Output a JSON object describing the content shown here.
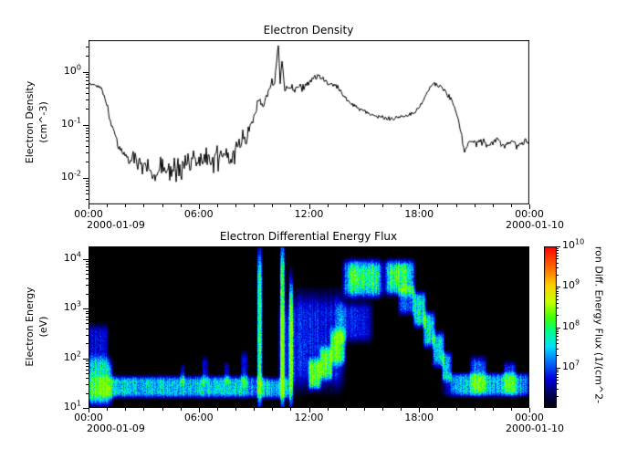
{
  "figure": {
    "background": "#ffffff"
  },
  "chart_data": [
    {
      "type": "line",
      "title": "Electron Density",
      "ylabel_lines": [
        "Electron Density",
        "(cm^-3)"
      ],
      "xlabel": "",
      "x_range_hours": [
        0,
        24
      ],
      "x_tick_hours": [
        0,
        6,
        12,
        18,
        24
      ],
      "x_tick_labels": [
        "00:00",
        "06:00",
        "12:00",
        "18:00",
        "00:00"
      ],
      "date_left": "2000-01-09",
      "date_right": "2000-01-10",
      "ylog_range": [
        -2.5,
        0.6
      ],
      "y_tick_exponents": [
        0,
        -1,
        -2
      ],
      "line_color": "#000000",
      "seed": 20000109,
      "anchors_time_value": [
        [
          0,
          0.6
        ],
        [
          0.4,
          0.55
        ],
        [
          0.7,
          0.5
        ],
        [
          0.9,
          0.3
        ],
        [
          1.2,
          0.12
        ],
        [
          1.5,
          0.05
        ],
        [
          1.9,
          0.028
        ],
        [
          2.4,
          0.02
        ],
        [
          3,
          0.016
        ],
        [
          3.6,
          0.013
        ],
        [
          4.2,
          0.018
        ],
        [
          4.8,
          0.014
        ],
        [
          5.4,
          0.02
        ],
        [
          6,
          0.022
        ],
        [
          6.6,
          0.02
        ],
        [
          7.2,
          0.026
        ],
        [
          7.8,
          0.03
        ],
        [
          8.4,
          0.05
        ],
        [
          8.8,
          0.09
        ],
        [
          9.1,
          0.18
        ],
        [
          9.35,
          0.32
        ],
        [
          9.5,
          0.2
        ],
        [
          9.7,
          0.35
        ],
        [
          9.9,
          0.45
        ],
        [
          10.1,
          0.7
        ],
        [
          10.25,
          1.5
        ],
        [
          10.35,
          3.2
        ],
        [
          10.45,
          0.6
        ],
        [
          10.55,
          2.2
        ],
        [
          10.62,
          0.9
        ],
        [
          10.7,
          0.5
        ],
        [
          10.9,
          0.55
        ],
        [
          11.2,
          0.45
        ],
        [
          11.6,
          0.5
        ],
        [
          12,
          0.6
        ],
        [
          12.3,
          0.8
        ],
        [
          12.55,
          0.9
        ],
        [
          12.8,
          0.7
        ],
        [
          13.1,
          0.6
        ],
        [
          13.5,
          0.55
        ],
        [
          13.9,
          0.35
        ],
        [
          14.3,
          0.25
        ],
        [
          14.8,
          0.2
        ],
        [
          15.3,
          0.16
        ],
        [
          15.8,
          0.14
        ],
        [
          16.3,
          0.13
        ],
        [
          16.8,
          0.14
        ],
        [
          17.3,
          0.15
        ],
        [
          17.8,
          0.18
        ],
        [
          18.2,
          0.28
        ],
        [
          18.5,
          0.45
        ],
        [
          18.8,
          0.62
        ],
        [
          19,
          0.55
        ],
        [
          19.3,
          0.5
        ],
        [
          19.6,
          0.35
        ],
        [
          19.9,
          0.25
        ],
        [
          20.2,
          0.1
        ],
        [
          20.45,
          0.03
        ],
        [
          20.7,
          0.05
        ],
        [
          21,
          0.042
        ],
        [
          21.4,
          0.05
        ],
        [
          21.8,
          0.04
        ],
        [
          22.2,
          0.05
        ],
        [
          22.6,
          0.042
        ],
        [
          23,
          0.048
        ],
        [
          23.4,
          0.04
        ],
        [
          23.8,
          0.05
        ],
        [
          24,
          0.045
        ]
      ],
      "noise_log10_segments": [
        [
          0,
          1,
          0.03
        ],
        [
          1,
          2,
          0.12
        ],
        [
          2,
          8.6,
          0.3
        ],
        [
          8.6,
          9.9,
          0.12
        ],
        [
          9.9,
          10.8,
          0.15
        ],
        [
          10.8,
          13.6,
          0.09
        ],
        [
          13.6,
          17.9,
          0.05
        ],
        [
          17.9,
          19.5,
          0.05
        ],
        [
          19.5,
          20.3,
          0.06
        ],
        [
          20.3,
          24,
          0.09
        ]
      ]
    },
    {
      "type": "heatmap",
      "title": "Electron Differential Energy Flux",
      "ylabel_lines": [
        "Electron Energy",
        "(eV)"
      ],
      "x_range_hours": [
        0,
        24
      ],
      "x_tick_hours": [
        0,
        6,
        12,
        18,
        24
      ],
      "x_tick_labels": [
        "00:00",
        "06:00",
        "12:00",
        "18:00",
        "00:00"
      ],
      "date_left": "2000-01-09",
      "date_right": "2000-01-10",
      "ylog_range": [
        1,
        4.25
      ],
      "y_tick_exponents": [
        4,
        3,
        2,
        1
      ],
      "background": "#000000",
      "seed": 99173,
      "colormap_stops": [
        [
          0,
          "#000008"
        ],
        [
          0.08,
          "#000050"
        ],
        [
          0.18,
          "#0000e0"
        ],
        [
          0.3,
          "#0080ff"
        ],
        [
          0.38,
          "#00e0ff"
        ],
        [
          0.48,
          "#00ff80"
        ],
        [
          0.56,
          "#40ff00"
        ],
        [
          0.66,
          "#c8ff00"
        ],
        [
          0.76,
          "#ffd000"
        ],
        [
          0.86,
          "#ff7000"
        ],
        [
          1,
          "#ff0000"
        ]
      ],
      "features": [
        {
          "t": [
            0,
            1.25
          ],
          "logE": [
            1.08,
            1.95
          ],
          "v": 0.42
        },
        {
          "t": [
            0,
            1.05
          ],
          "logE": [
            1.9,
            2.65
          ],
          "v": 0.18
        },
        {
          "t": [
            0.4,
            9.45
          ],
          "logE": [
            1.22,
            1.62
          ],
          "v": 0.36
        },
        {
          "t": [
            5,
            5.25
          ],
          "logE": [
            1.5,
            1.85
          ],
          "v": 0.15
        },
        {
          "t": [
            6.2,
            6.5
          ],
          "logE": [
            1.5,
            2
          ],
          "v": 0.17
        },
        {
          "t": [
            7.4,
            7.65
          ],
          "logE": [
            1.5,
            1.9
          ],
          "v": 0.15
        },
        {
          "t": [
            8.3,
            8.65
          ],
          "logE": [
            1.45,
            2.1
          ],
          "v": 0.17
        },
        {
          "t": [
            9.2,
            9.45
          ],
          "logE": [
            1.1,
            4.05
          ],
          "v": 0.46
        },
        {
          "t": [
            9.45,
            10.95
          ],
          "logE": [
            1.2,
            1.58
          ],
          "v": 0.26
        },
        {
          "t": [
            10.45,
            10.68
          ],
          "logE": [
            1.1,
            4.2
          ],
          "v": 0.5
        },
        {
          "t": [
            10.92,
            11.12
          ],
          "logE": [
            1.1,
            3.55
          ],
          "v": 0.42
        },
        {
          "t": [
            10.35,
            11.25
          ],
          "logE": [
            1.3,
            3
          ],
          "v": 0.15
        },
        {
          "t": [
            11.1,
            13.85
          ],
          "logE": [
            1.45,
            3.25
          ],
          "v": 0.2
        },
        {
          "t": [
            12,
            12.65
          ],
          "logE": [
            1.4,
            1.95
          ],
          "v": 0.4
        },
        {
          "t": [
            12.6,
            13.25
          ],
          "logE": [
            1.6,
            2.2
          ],
          "v": 0.4
        },
        {
          "t": [
            13.2,
            13.95
          ],
          "logE": [
            1.9,
            2.55
          ],
          "v": 0.37
        },
        {
          "t": [
            13.6,
            15.4
          ],
          "logE": [
            2.35,
            3.1
          ],
          "v": 0.2
        },
        {
          "t": [
            13.95,
            15.95
          ],
          "logE": [
            3.25,
            3.95
          ],
          "v": 0.42
        },
        {
          "t": [
            16.2,
            17.7
          ],
          "logE": [
            3.3,
            3.95
          ],
          "v": 0.42
        },
        {
          "t": [
            14.2,
            15.7
          ],
          "logE": [
            3.45,
            3.8
          ],
          "v": 0.1
        },
        {
          "t": [
            16.4,
            17.4
          ],
          "logE": [
            3.5,
            3.85
          ],
          "v": 0.1
        },
        {
          "t": [
            16.9,
            17.75
          ],
          "logE": [
            2.9,
            3.45
          ],
          "v": 0.27
        },
        {
          "t": [
            17.7,
            18.35
          ],
          "logE": [
            2.65,
            3.3
          ],
          "v": 0.38
        },
        {
          "t": [
            18.25,
            18.85
          ],
          "logE": [
            2.25,
            2.9
          ],
          "v": 0.38
        },
        {
          "t": [
            18.75,
            19.35
          ],
          "logE": [
            1.85,
            2.5
          ],
          "v": 0.36
        },
        {
          "t": [
            19.25,
            19.75
          ],
          "logE": [
            1.55,
            2.1
          ],
          "v": 0.34
        },
        {
          "t": [
            19.6,
            24
          ],
          "logE": [
            1.25,
            1.68
          ],
          "v": 0.36
        },
        {
          "t": [
            20.8,
            21.65
          ],
          "logE": [
            1.3,
            2
          ],
          "v": 0.25
        },
        {
          "t": [
            22.6,
            23.25
          ],
          "logE": [
            1.3,
            1.9
          ],
          "v": 0.22
        }
      ],
      "colorbar": {
        "range_exponents": [
          6,
          10
        ],
        "tick_exponents": [
          10,
          9,
          8,
          7
        ],
        "label_visible_text": "ron Diff. Energy Flux (1/(cm^2-"
      }
    }
  ]
}
